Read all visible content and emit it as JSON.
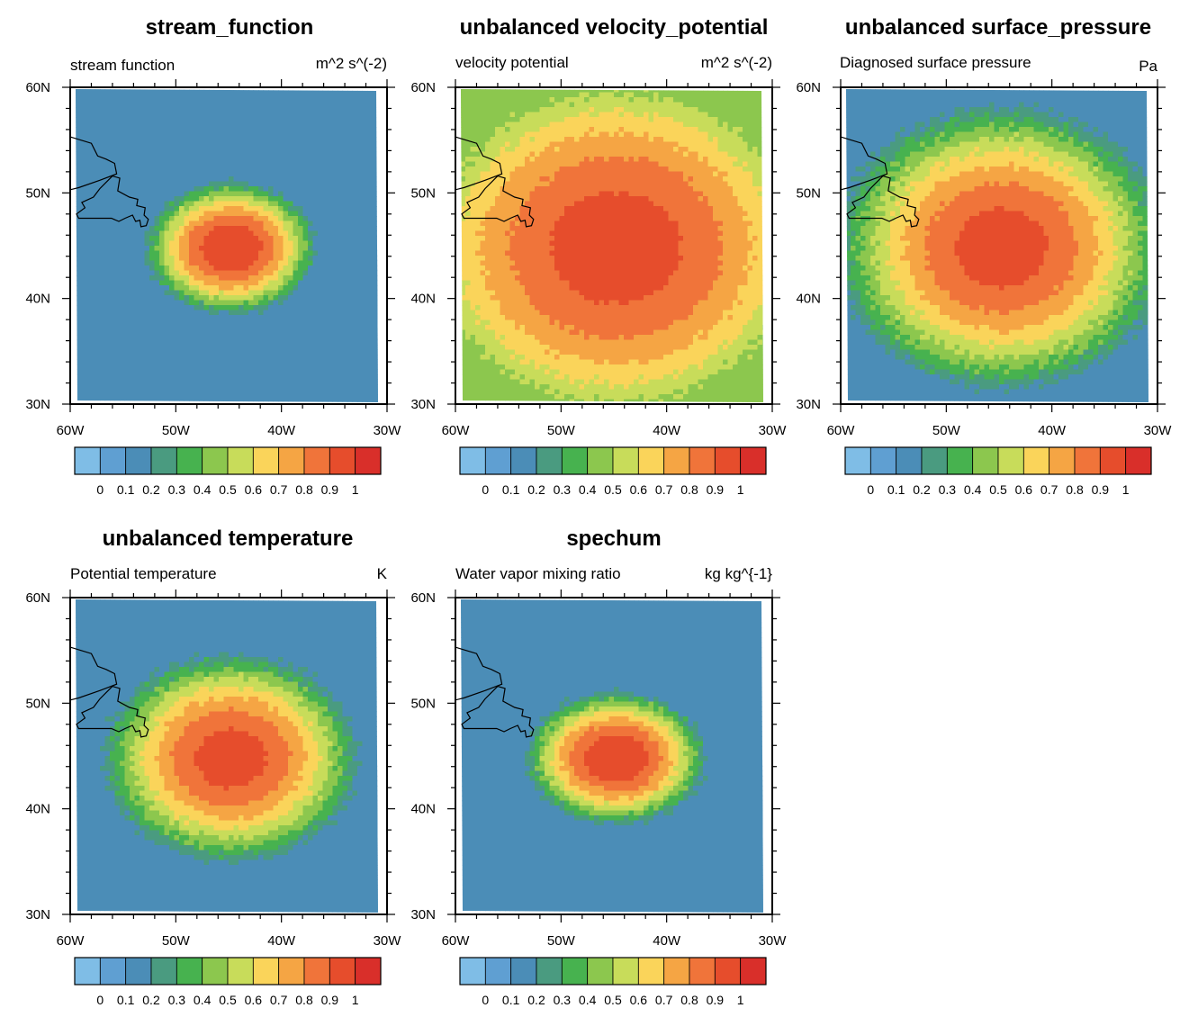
{
  "figure": {
    "background": "#ffffff"
  },
  "colorbar": {
    "colors": [
      "#7fbde6",
      "#5f9fd2",
      "#4b8db7",
      "#4a9b80",
      "#47b24f",
      "#8cc74e",
      "#c8dc5a",
      "#fad45a",
      "#f5a544",
      "#f0743a",
      "#e64d2c",
      "#d92f2a"
    ],
    "labels": [
      "0",
      "0.1",
      "0.2",
      "0.3",
      "0.4",
      "0.5",
      "0.6",
      "0.7",
      "0.8",
      "0.9",
      "1"
    ]
  },
  "map": {
    "lon_range": [
      -60,
      -30
    ],
    "lat_range": [
      30,
      60
    ],
    "lon_ticks": [
      "60W",
      "50W",
      "40W",
      "30W"
    ],
    "lat_ticks": [
      "30N",
      "40N",
      "50N",
      "60N"
    ],
    "coast_lonlat": [
      [
        -60,
        55.3
      ],
      [
        -58,
        54.7
      ],
      [
        -57.4,
        53.5
      ],
      [
        -56.6,
        53.2
      ],
      [
        -55.8,
        52.8
      ],
      [
        -55.6,
        51.8
      ],
      [
        -57.2,
        51.2
      ],
      [
        -59.2,
        50.5
      ],
      [
        -60,
        50.3
      ]
    ],
    "island_lonlat": [
      [
        -56,
        51.6
      ],
      [
        -55.3,
        51.4
      ],
      [
        -55.5,
        50.2
      ],
      [
        -54.4,
        49.6
      ],
      [
        -53.6,
        49.4
      ],
      [
        -53.7,
        48.8
      ],
      [
        -52.9,
        48.6
      ],
      [
        -53.0,
        47.9
      ],
      [
        -52.6,
        47.5
      ],
      [
        -52.8,
        46.9
      ],
      [
        -53.3,
        46.8
      ],
      [
        -53.4,
        47.4
      ],
      [
        -53.8,
        47.3
      ],
      [
        -54.1,
        47.9
      ],
      [
        -54.8,
        47.6
      ],
      [
        -55.4,
        47.3
      ],
      [
        -56.1,
        47.6
      ],
      [
        -57.4,
        47.6
      ],
      [
        -59.2,
        47.6
      ],
      [
        -59.4,
        48.0
      ],
      [
        -58.6,
        48.6
      ],
      [
        -58.9,
        49.1
      ],
      [
        -57.8,
        49.6
      ],
      [
        -57.2,
        50.4
      ],
      [
        -56.6,
        51.0
      ],
      [
        -56,
        51.6
      ]
    ]
  },
  "chart_data": [
    {
      "type": "heatmap",
      "title": "stream_function",
      "left_label": "stream function",
      "right_label": "m^2 s^(-2)",
      "xlabel": "",
      "ylabel": "",
      "xlim": [
        -60,
        -30
      ],
      "ylim": [
        30,
        60
      ],
      "levels": [
        0,
        0.1,
        0.2,
        0.3,
        0.4,
        0.5,
        0.6,
        0.7,
        0.8,
        0.9,
        1
      ],
      "field": {
        "center_lon": -44.8,
        "center_lat": 44.8,
        "radius_lon": 9.0,
        "radius_lat": 7.0,
        "peak": 1.0,
        "floor": 0.1
      }
    },
    {
      "type": "heatmap",
      "title": "unbalanced velocity_potential",
      "left_label": "velocity potential",
      "right_label": "m^2 s^(-2)",
      "xlabel": "",
      "ylabel": "",
      "xlim": [
        -60,
        -30
      ],
      "ylim": [
        30,
        60
      ],
      "levels": [
        0,
        0.1,
        0.2,
        0.3,
        0.4,
        0.5,
        0.6,
        0.7,
        0.8,
        0.9,
        1
      ],
      "field": {
        "center_lon": -44.8,
        "center_lat": 44.8,
        "radius_lon": 24.5,
        "radius_lat": 21.0,
        "peak": 0.96,
        "floor": 0.48
      }
    },
    {
      "type": "heatmap",
      "title": "unbalanced surface_pressure",
      "left_label": "Diagnosed surface pressure",
      "right_label": "Pa",
      "xlabel": "",
      "ylabel": "",
      "xlim": [
        -60,
        -30
      ],
      "ylim": [
        30,
        60
      ],
      "levels": [
        0,
        0.1,
        0.2,
        0.3,
        0.4,
        0.5,
        0.6,
        0.7,
        0.8,
        0.9,
        1
      ],
      "field": {
        "center_lon": -44.8,
        "center_lat": 44.8,
        "radius_lon": 17.5,
        "radius_lat": 15.0,
        "peak": 0.96,
        "floor": 0.1
      }
    },
    {
      "type": "heatmap",
      "title": "unbalanced temperature",
      "left_label": "Potential temperature",
      "right_label": "K",
      "xlabel": "",
      "ylabel": "",
      "xlim": [
        -60,
        -30
      ],
      "ylim": [
        30,
        60
      ],
      "levels": [
        0,
        0.1,
        0.2,
        0.3,
        0.4,
        0.5,
        0.6,
        0.7,
        0.8,
        0.9,
        1
      ],
      "field": {
        "center_lon": -44.8,
        "center_lat": 44.8,
        "radius_lon": 13.5,
        "radius_lat": 11.0,
        "peak": 0.96,
        "floor": 0.1
      }
    },
    {
      "type": "heatmap",
      "title": "spechum",
      "left_label": "Water vapor mixing ratio",
      "right_label": "kg kg^{-1}",
      "xlabel": "",
      "ylabel": "",
      "xlim": [
        -60,
        -30
      ],
      "ylim": [
        30,
        60
      ],
      "levels": [
        0,
        0.1,
        0.2,
        0.3,
        0.4,
        0.5,
        0.6,
        0.7,
        0.8,
        0.9,
        1
      ],
      "field": {
        "center_lon": -44.8,
        "center_lat": 44.8,
        "radius_lon": 9.5,
        "radius_lat": 7.0,
        "peak": 1.0,
        "floor": 0.1
      }
    }
  ]
}
